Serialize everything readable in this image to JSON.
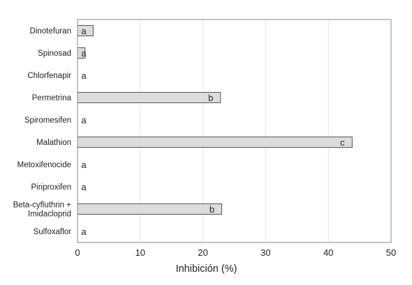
{
  "chart_data": {
    "type": "bar",
    "orientation": "horizontal",
    "categories": [
      "Dinotefuran",
      "Spinosad",
      "Chlorfenapir",
      "Permetrina",
      "Spiromesifen",
      "Malathion",
      "Metoxifenocide",
      "Piriproxifen",
      "Beta-cyfluthrin + Imidacloprid",
      "Sulfoxaflor"
    ],
    "category_label_lines": [
      [
        "Dinotefuran"
      ],
      [
        "Spinosad"
      ],
      [
        "Chlorfenapir"
      ],
      [
        "Permetrina"
      ],
      [
        "Spiromesifen"
      ],
      [
        "Malathion"
      ],
      [
        "Metoxifenocide"
      ],
      [
        "Piriproxifen"
      ],
      [
        "Beta-cyfluthrin +",
        "Imidacloprid"
      ],
      [
        "Sulfoxaflor"
      ]
    ],
    "values": [
      2.5,
      1.2,
      0,
      22.8,
      0,
      43.8,
      0,
      0,
      23.0,
      0
    ],
    "data_labels": [
      "a",
      "a",
      "a",
      "b",
      "a",
      "c",
      "a",
      "a",
      "b",
      "a"
    ],
    "xlabel": "Inhibición (%)",
    "ylabel": "",
    "xlim": [
      0,
      50
    ],
    "xticks": [
      0,
      10,
      20,
      30,
      40,
      50
    ],
    "grid": "vertical",
    "legend": "none",
    "colors": {
      "bar_fill": "#dcdcdc",
      "bar_stroke": "#555555",
      "grid": "#e6e6e6",
      "frame": "#8a8a8a"
    }
  }
}
